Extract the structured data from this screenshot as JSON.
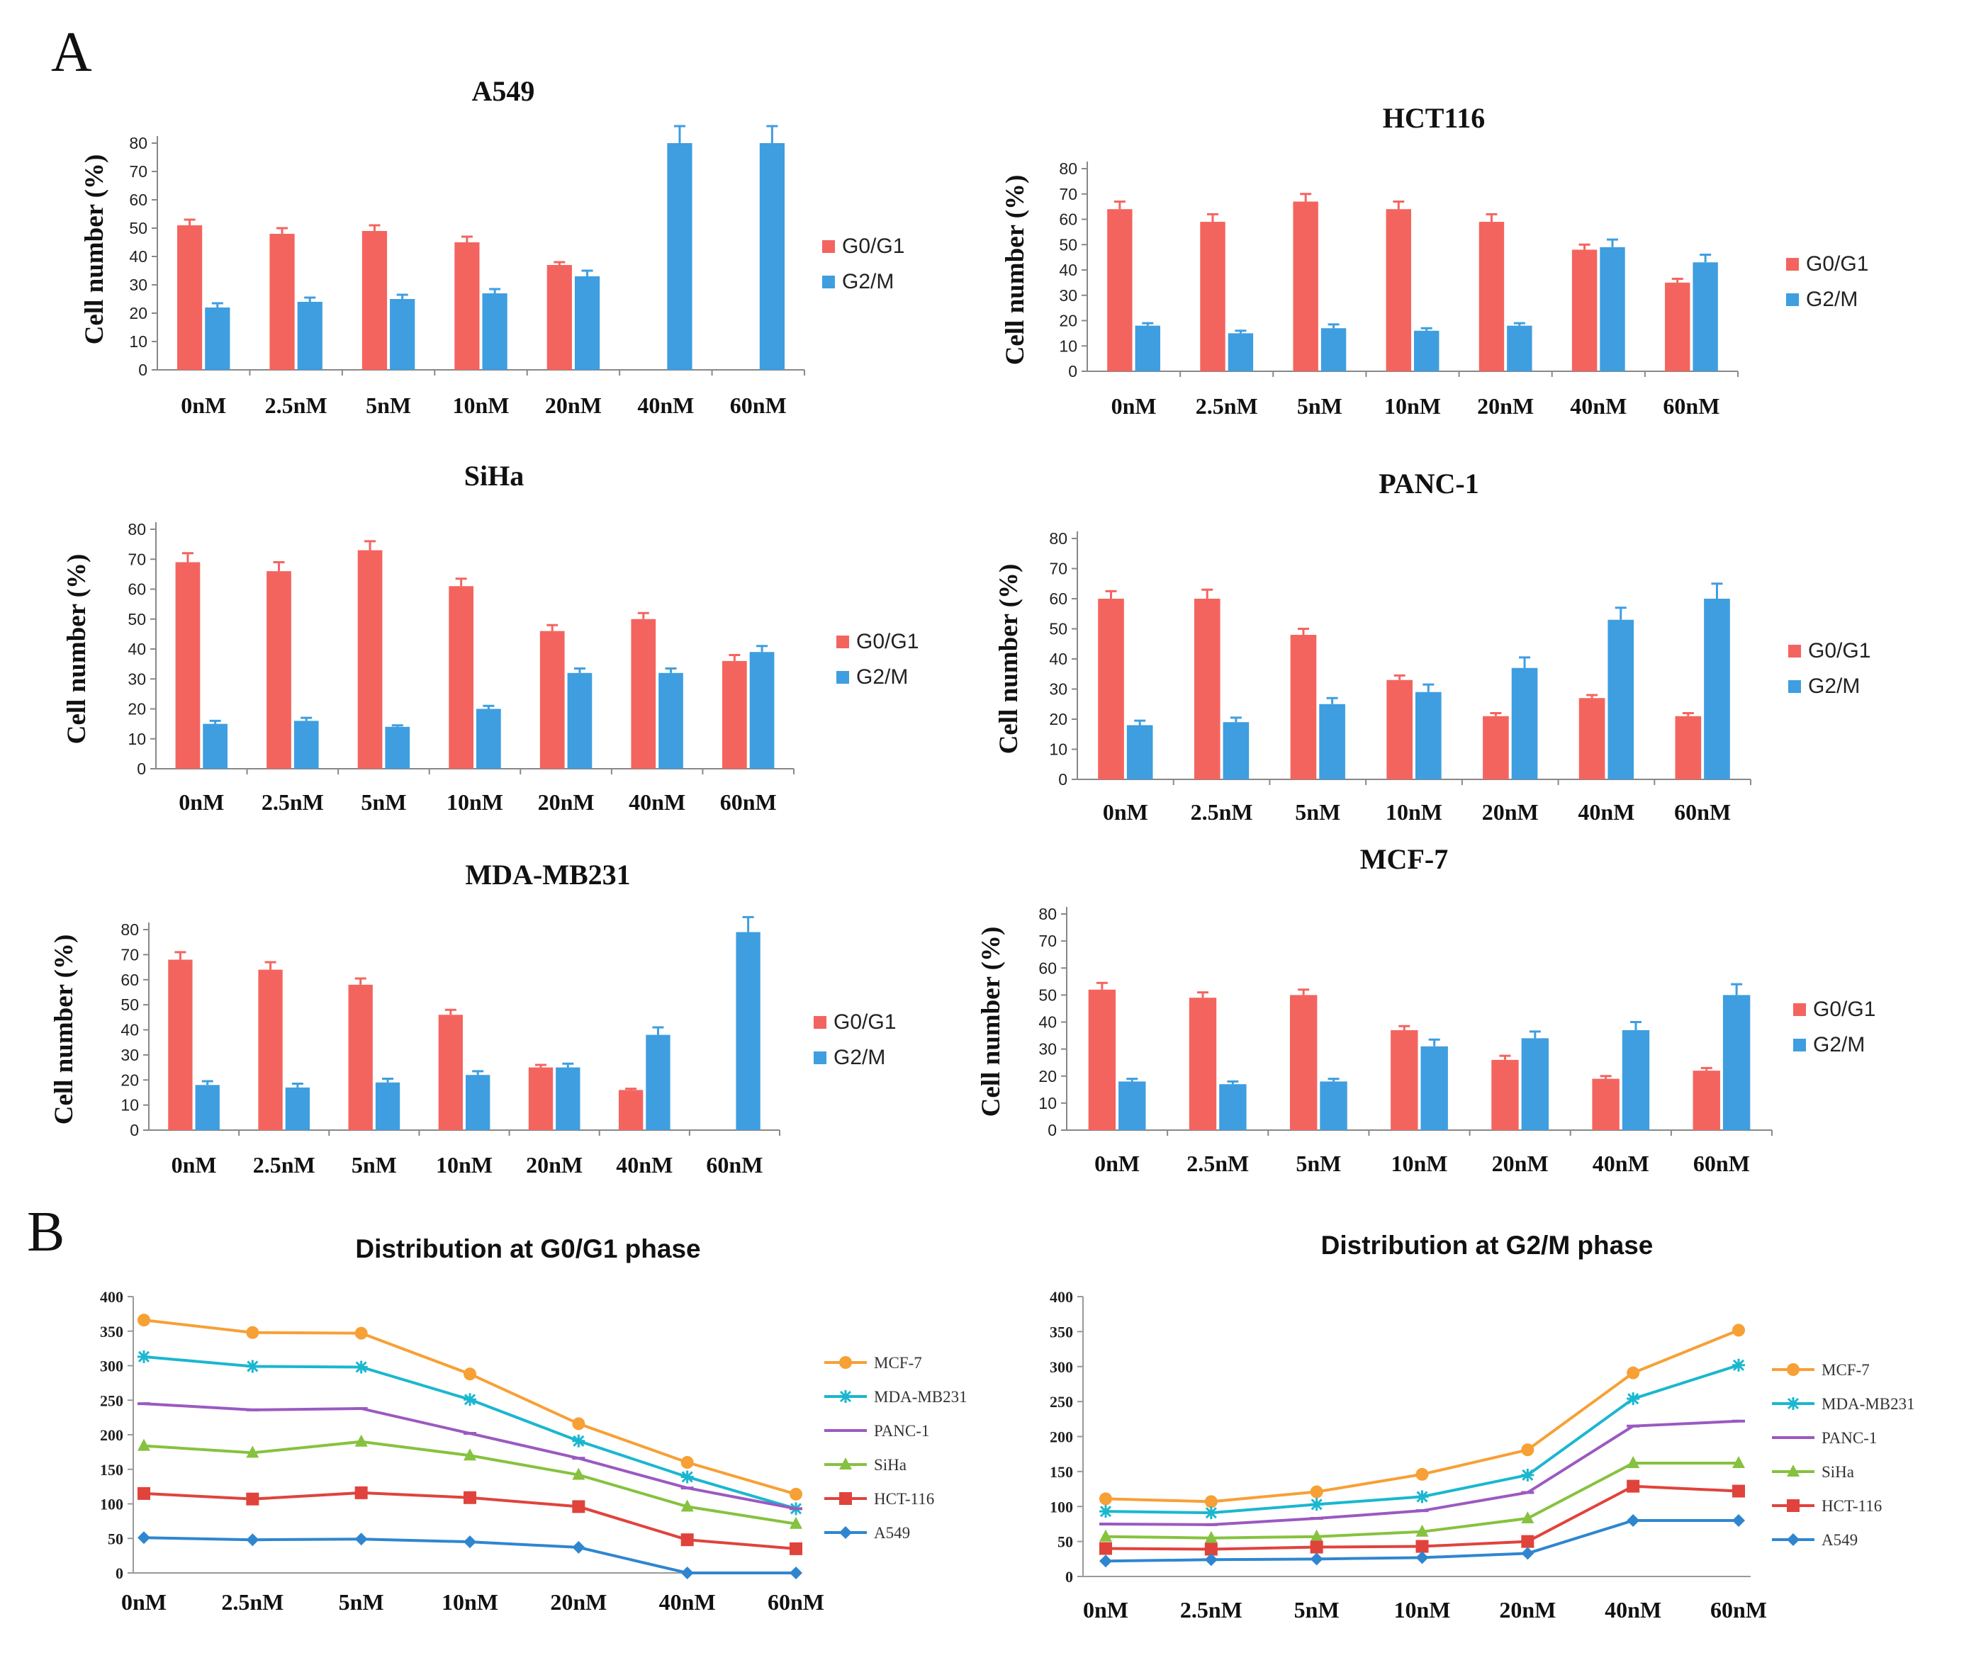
{
  "panels": {
    "A": "A",
    "B": "B"
  },
  "colors": {
    "g0g1": "#f4645e",
    "g2m": "#3e9ee0",
    "MCF-7": "#f7a035",
    "MDA-MB231": "#1ab7cf",
    "PANC-1": "#9b59c1",
    "SiHa": "#86c23f",
    "HCT-116": "#e0433c",
    "A549": "#2f86cf"
  },
  "chart_data": [
    {
      "type": "bar",
      "title": "A549",
      "ylabel": "Cell number (%)",
      "categories": [
        "0nM",
        "2.5nM",
        "5nM",
        "10nM",
        "20nM",
        "40nM",
        "60nM"
      ],
      "ylim": [
        0,
        80
      ],
      "yticks": [
        "0",
        "10",
        "20",
        "30",
        "40",
        "50",
        "60",
        "70",
        "80"
      ],
      "series": [
        {
          "name": "G0/G1",
          "values": [
            51,
            48,
            49,
            45,
            37,
            0,
            0
          ],
          "errors": [
            2,
            2,
            2,
            2,
            1,
            0,
            0
          ]
        },
        {
          "name": "G2/M",
          "values": [
            22,
            24,
            25,
            27,
            33,
            80,
            80
          ],
          "errors": [
            1.5,
            1.5,
            1.5,
            1.5,
            2,
            6,
            6
          ]
        }
      ]
    },
    {
      "type": "bar",
      "title": "HCT116",
      "ylabel": "Cell number (%)",
      "categories": [
        "0nM",
        "2.5nM",
        "5nM",
        "10nM",
        "20nM",
        "40nM",
        "60nM"
      ],
      "ylim": [
        0,
        80
      ],
      "yticks": [
        "0",
        "10",
        "20",
        "30",
        "40",
        "50",
        "60",
        "70",
        "80"
      ],
      "series": [
        {
          "name": "G0/G1",
          "values": [
            64,
            59,
            67,
            64,
            59,
            48,
            35
          ],
          "errors": [
            3,
            3,
            3,
            3,
            3,
            2,
            1.5
          ]
        },
        {
          "name": "G2/M",
          "values": [
            18,
            15,
            17,
            16,
            18,
            49,
            43
          ],
          "errors": [
            1,
            1,
            1.5,
            1,
            1,
            3,
            3
          ]
        }
      ]
    },
    {
      "type": "bar",
      "title": "SiHa",
      "ylabel": "Cell number (%)",
      "categories": [
        "0nM",
        "2.5nM",
        "5nM",
        "10nM",
        "20nM",
        "40nM",
        "60nM"
      ],
      "ylim": [
        0,
        80
      ],
      "yticks": [
        "0",
        "10",
        "20",
        "30",
        "40",
        "50",
        "60",
        "70",
        "80"
      ],
      "series": [
        {
          "name": "G0/G1",
          "values": [
            69,
            66,
            73,
            61,
            46,
            50,
            36
          ],
          "errors": [
            3,
            3,
            3,
            2.5,
            2,
            2,
            2
          ]
        },
        {
          "name": "G2/M",
          "values": [
            15,
            16,
            14,
            20,
            32,
            32,
            39
          ],
          "errors": [
            1,
            1,
            0.5,
            1,
            1.5,
            1.5,
            2
          ]
        }
      ]
    },
    {
      "type": "bar",
      "title": "PANC-1",
      "ylabel": "Cell number (%)",
      "categories": [
        "0nM",
        "2.5nM",
        "5nM",
        "10nM",
        "20nM",
        "40nM",
        "60nM"
      ],
      "ylim": [
        0,
        80
      ],
      "yticks": [
        "0",
        "10",
        "20",
        "30",
        "40",
        "50",
        "60",
        "70",
        "80"
      ],
      "series": [
        {
          "name": "G0/G1",
          "values": [
            60,
            60,
            48,
            33,
            21,
            27,
            21
          ],
          "errors": [
            2.5,
            3,
            2,
            1.5,
            1,
            1,
            1
          ]
        },
        {
          "name": "G2/M",
          "values": [
            18,
            19,
            25,
            29,
            37,
            53,
            60
          ],
          "errors": [
            1.5,
            1.5,
            2,
            2.5,
            3.5,
            4,
            5
          ]
        }
      ]
    },
    {
      "type": "bar",
      "title": "MDA-MB231",
      "ylabel": "Cell number (%)",
      "categories": [
        "0nM",
        "2.5nM",
        "5nM",
        "10nM",
        "20nM",
        "40nM",
        "60nM"
      ],
      "ylim": [
        0,
        80
      ],
      "yticks": [
        "0",
        "10",
        "20",
        "30",
        "40",
        "50",
        "60",
        "70",
        "80"
      ],
      "series": [
        {
          "name": "G0/G1",
          "values": [
            68,
            64,
            58,
            46,
            25,
            16,
            0
          ],
          "errors": [
            3,
            3,
            2.5,
            2,
            1,
            0.5,
            0
          ]
        },
        {
          "name": "G2/M",
          "values": [
            18,
            17,
            19,
            22,
            25,
            38,
            79
          ],
          "errors": [
            1.5,
            1.5,
            1.5,
            1.5,
            1.5,
            3,
            6
          ]
        }
      ]
    },
    {
      "type": "bar",
      "title": "MCF-7",
      "ylabel": "Cell number (%)",
      "categories": [
        "0nM",
        "2.5nM",
        "5nM",
        "10nM",
        "20nM",
        "40nM",
        "60nM"
      ],
      "ylim": [
        0,
        80
      ],
      "yticks": [
        "0",
        "10",
        "20",
        "30",
        "40",
        "50",
        "60",
        "70",
        "80"
      ],
      "series": [
        {
          "name": "G0/G1",
          "values": [
            52,
            49,
            50,
            37,
            26,
            19,
            22
          ],
          "errors": [
            2.5,
            2,
            2,
            1.5,
            1.5,
            1,
            1
          ]
        },
        {
          "name": "G2/M",
          "values": [
            18,
            17,
            18,
            31,
            34,
            37,
            50
          ],
          "errors": [
            1,
            1,
            1,
            2.5,
            2.5,
            3,
            4
          ]
        }
      ]
    },
    {
      "type": "line",
      "title": "Distribution at G0/G1 phase",
      "categories": [
        "0nM",
        "2.5nM",
        "5nM",
        "10nM",
        "20nM",
        "40nM",
        "60nM"
      ],
      "ylim": [
        0,
        400
      ],
      "yticks": [
        "0",
        "50",
        "100",
        "150",
        "200",
        "250",
        "300",
        "350",
        "400"
      ],
      "series": [
        {
          "name": "MCF-7",
          "marker": "circle",
          "values": [
            366,
            348,
            347,
            288,
            216,
            160,
            114
          ]
        },
        {
          "name": "MDA-MB231",
          "marker": "star",
          "values": [
            313,
            299,
            298,
            251,
            191,
            139,
            93
          ]
        },
        {
          "name": "PANC-1",
          "marker": "cross",
          "values": [
            245,
            236,
            238,
            202,
            166,
            123,
            93
          ]
        },
        {
          "name": "SiHa",
          "marker": "triangle",
          "values": [
            184,
            174,
            190,
            170,
            142,
            96,
            71
          ]
        },
        {
          "name": "HCT-116",
          "marker": "square",
          "values": [
            115,
            107,
            116,
            109,
            96,
            48,
            35
          ]
        },
        {
          "name": "A549",
          "marker": "diamond",
          "values": [
            51,
            48,
            49,
            45,
            37,
            0,
            0
          ]
        }
      ]
    },
    {
      "type": "line",
      "title": "Distribution at G2/M phase",
      "categories": [
        "0nM",
        "2.5nM",
        "5nM",
        "10nM",
        "20nM",
        "40nM",
        "60nM"
      ],
      "ylim": [
        0,
        400
      ],
      "yticks": [
        "0",
        "50",
        "100",
        "150",
        "200",
        "250",
        "300",
        "350",
        "400"
      ],
      "series": [
        {
          "name": "MCF-7",
          "marker": "circle",
          "values": [
            111,
            107,
            121,
            146,
            181,
            291,
            352
          ]
        },
        {
          "name": "MDA-MB231",
          "marker": "star",
          "values": [
            93,
            91,
            103,
            114,
            145,
            254,
            302
          ]
        },
        {
          "name": "PANC-1",
          "marker": "cross",
          "values": [
            75,
            74,
            83,
            94,
            120,
            215,
            222
          ]
        },
        {
          "name": "SiHa",
          "marker": "triangle",
          "values": [
            57,
            55,
            57,
            64,
            83,
            162,
            162
          ]
        },
        {
          "name": "HCT-116",
          "marker": "square",
          "values": [
            40,
            39,
            42,
            43,
            50,
            129,
            122
          ]
        },
        {
          "name": "A549",
          "marker": "diamond",
          "values": [
            22,
            24,
            25,
            27,
            33,
            80,
            80
          ]
        }
      ]
    }
  ]
}
